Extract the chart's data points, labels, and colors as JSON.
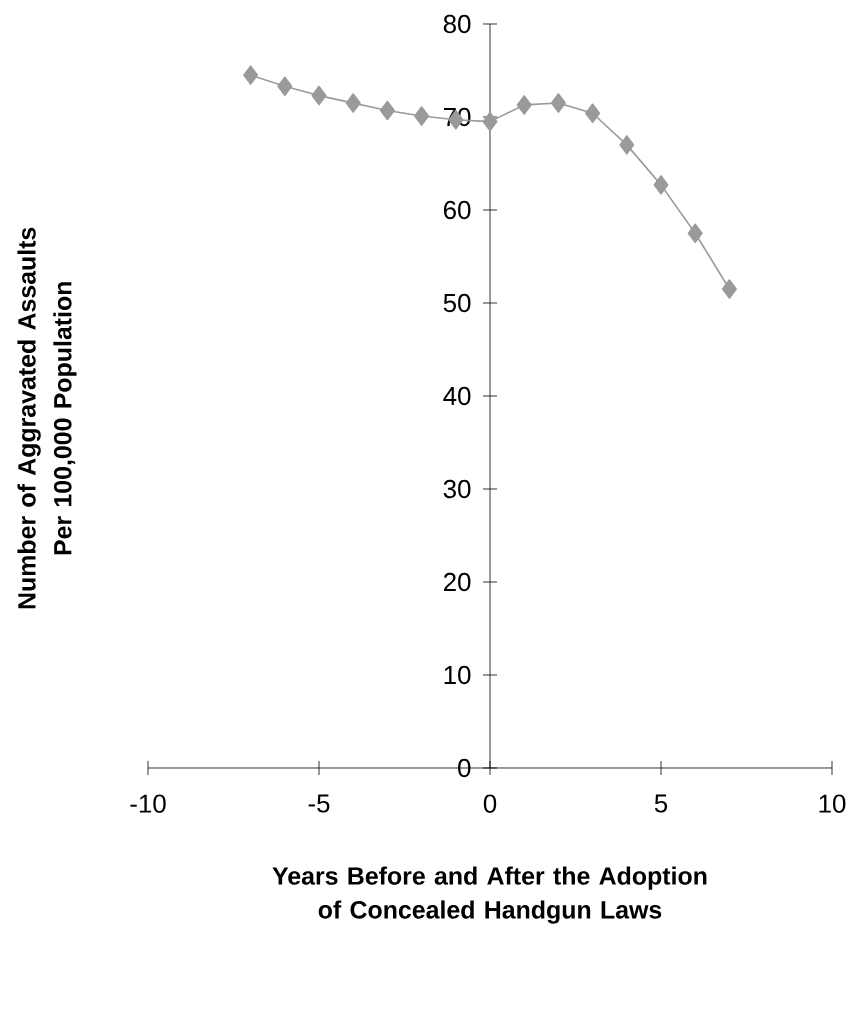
{
  "chart_data": {
    "type": "line",
    "xlabel": "Years Before and After the Adoption of Concealed Handgun Laws",
    "ylabel": "Number of Aggravated Assaults Per 100,000 Population",
    "x": [
      -7,
      -6,
      -5,
      -4,
      -3,
      -2,
      -1,
      0,
      1,
      2,
      3,
      4,
      5,
      6,
      7
    ],
    "series": [
      {
        "color": "#9a9a9a",
        "values": [
          74.5,
          73.3,
          72.3,
          71.5,
          70.7,
          70.1,
          69.7,
          69.5,
          71.3,
          71.5,
          70.4,
          67.0,
          62.7,
          57.5,
          51.5
        ]
      }
    ],
    "xlim": [
      -10,
      10
    ],
    "ylim": [
      0,
      80
    ],
    "xticks": [
      -10,
      -5,
      0,
      5,
      10
    ],
    "yticks": [
      0,
      10,
      20,
      30,
      40,
      50,
      60,
      70,
      80
    ],
    "grid": false,
    "marker": "diamond",
    "line_style": "solid"
  }
}
